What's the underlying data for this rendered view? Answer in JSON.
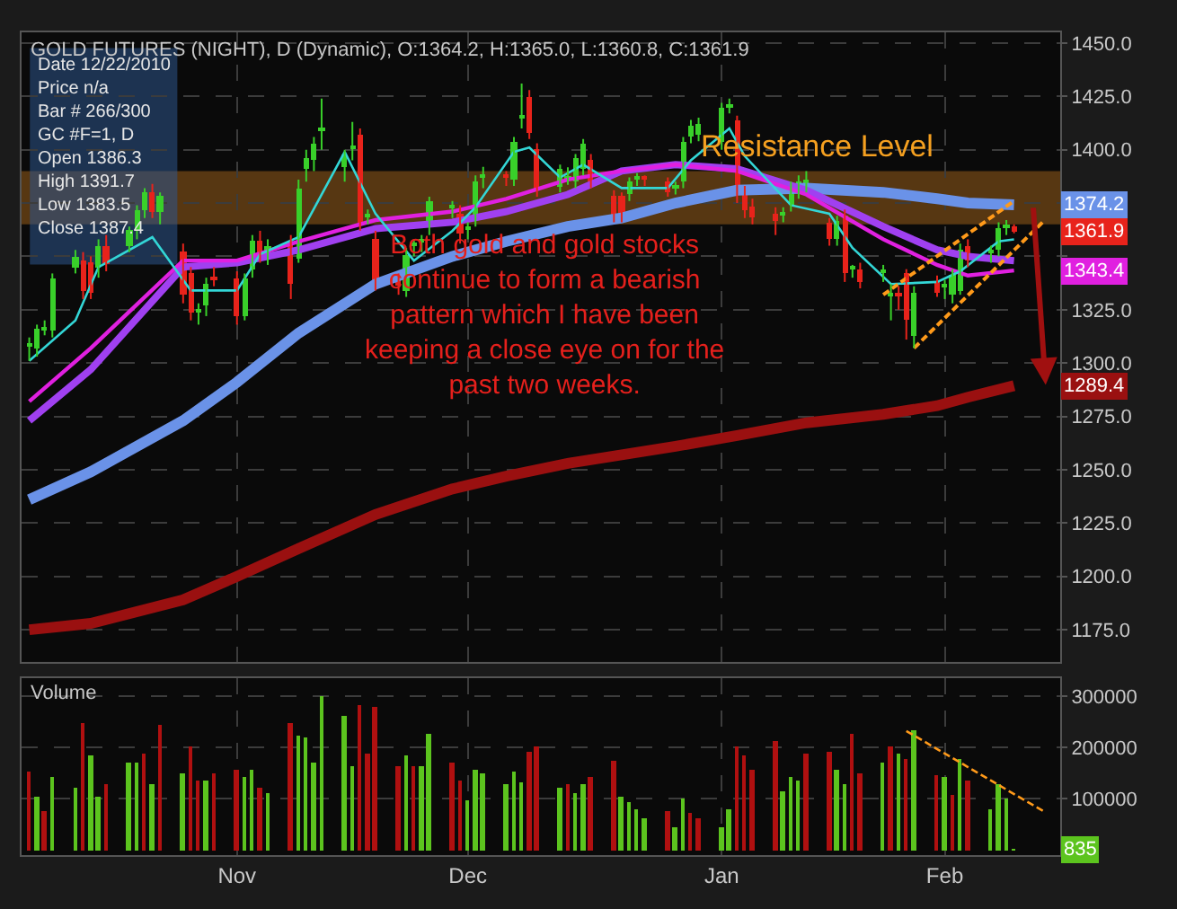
{
  "chart_data": [
    {
      "type": "candlestick",
      "title": "GOLD FUTURES (NIGHT), D (Dynamic), O:1364.2, H:1365.0, L:1360.8, C:1361.9",
      "x": [
        "2010-10-05",
        "2010-10-06",
        "2010-10-07",
        "2010-10-08",
        "2010-10-11",
        "2010-10-12",
        "2010-10-13",
        "2010-10-14",
        "2010-10-15",
        "2010-10-18",
        "2010-10-19",
        "2010-10-20",
        "2010-10-21",
        "2010-10-22",
        "2010-10-25",
        "2010-10-26",
        "2010-10-27",
        "2010-10-28",
        "2010-10-29",
        "2010-11-01",
        "2010-11-02",
        "2010-11-03",
        "2010-11-04",
        "2010-11-05",
        "2010-11-08",
        "2010-11-09",
        "2010-11-10",
        "2010-11-11",
        "2010-11-12",
        "2010-11-15",
        "2010-11-16",
        "2010-11-17",
        "2010-11-18",
        "2010-11-19",
        "2010-11-22",
        "2010-11-23",
        "2010-11-24",
        "2010-11-25",
        "2010-11-26",
        "2010-11-29",
        "2010-11-30",
        "2010-12-01",
        "2010-12-02",
        "2010-12-03",
        "2010-12-06",
        "2010-12-07",
        "2010-12-08",
        "2010-12-09",
        "2010-12-10",
        "2010-12-13",
        "2010-12-14",
        "2010-12-15",
        "2010-12-16",
        "2010-12-17",
        "2010-12-20",
        "2010-12-21",
        "2010-12-22",
        "2010-12-23",
        "2010-12-24",
        "2010-12-27",
        "2010-12-28",
        "2010-12-29",
        "2010-12-30",
        "2010-12-31",
        "2011-01-03",
        "2011-01-04",
        "2011-01-05",
        "2011-01-06",
        "2011-01-07",
        "2011-01-10",
        "2011-01-11",
        "2011-01-12",
        "2011-01-13",
        "2011-01-14",
        "2011-01-17",
        "2011-01-18",
        "2011-01-19",
        "2011-01-20",
        "2011-01-21",
        "2011-01-24",
        "2011-01-25",
        "2011-01-26",
        "2011-01-27",
        "2011-01-28",
        "2011-01-31",
        "2011-02-01",
        "2011-02-02",
        "2011-02-03",
        "2011-02-04",
        "2011-02-07",
        "2011-02-08",
        "2011-02-09",
        "2011-02-10"
      ],
      "ohlc": [
        [
          1308,
          1312,
          1301,
          1309
        ],
        [
          1307,
          1318,
          1303,
          1316
        ],
        [
          1316,
          1320,
          1313,
          1317
        ],
        [
          1315,
          1342,
          1312,
          1340
        ],
        [
          1345,
          1353,
          1342,
          1350
        ],
        [
          1348,
          1352,
          1330,
          1334
        ],
        [
          1347,
          1350,
          1330,
          1333
        ],
        [
          1345,
          1358,
          1340,
          1355
        ],
        [
          1355,
          1360,
          1343,
          1346
        ],
        [
          1355,
          1364,
          1352,
          1362
        ],
        [
          1362,
          1374,
          1358,
          1372
        ],
        [
          1372,
          1382,
          1368,
          1380
        ],
        [
          1380,
          1384,
          1368,
          1371
        ],
        [
          1371,
          1380,
          1365,
          1378
        ],
        [
          1352,
          1356,
          1328,
          1332
        ],
        [
          1342,
          1345,
          1320,
          1324
        ],
        [
          1324,
          1328,
          1318,
          1325
        ],
        [
          1327,
          1340,
          1322,
          1337
        ],
        [
          1340,
          1345,
          1336,
          1339
        ],
        [
          1340,
          1343,
          1318,
          1322
        ],
        [
          1322,
          1342,
          1320,
          1340
        ],
        [
          1344,
          1360,
          1340,
          1357
        ],
        [
          1357,
          1362,
          1347,
          1350
        ],
        [
          1350,
          1358,
          1346,
          1355
        ],
        [
          1357,
          1360,
          1330,
          1337
        ],
        [
          1349,
          1386,
          1347,
          1382
        ],
        [
          1391,
          1400,
          1385,
          1396
        ],
        [
          1395,
          1406,
          1390,
          1403
        ],
        [
          1409,
          1424,
          1400,
          1410
        ],
        [
          1392,
          1400,
          1385,
          1398
        ],
        [
          1401,
          1413,
          1395,
          1402
        ],
        [
          1407,
          1410,
          1362,
          1365
        ],
        [
          1369,
          1372,
          1365,
          1370
        ],
        [
          1358,
          1362,
          1334,
          1337
        ],
        [
          1339,
          1342,
          1332,
          1336
        ],
        [
          1334,
          1354,
          1331,
          1351
        ],
        [
          1355,
          1358,
          1350,
          1356
        ],
        [
          1357,
          1360,
          1352,
          1358
        ],
        [
          1365,
          1378,
          1360,
          1376
        ],
        [
          1373,
          1376,
          1368,
          1374
        ],
        [
          1370,
          1374,
          1356,
          1361
        ],
        [
          1363,
          1366,
          1358,
          1364
        ],
        [
          1368,
          1388,
          1364,
          1385
        ],
        [
          1387,
          1392,
          1382,
          1388
        ],
        [
          1388,
          1390,
          1383,
          1387
        ],
        [
          1386,
          1406,
          1383,
          1404
        ],
        [
          1415,
          1431,
          1410,
          1416
        ],
        [
          1425,
          1428,
          1405,
          1408
        ],
        [
          1400,
          1403,
          1378,
          1382
        ],
        [
          1383,
          1393,
          1380,
          1391
        ],
        [
          1386.3,
          1391.7,
          1383.5,
          1387.4
        ],
        [
          1385,
          1398,
          1382,
          1396
        ],
        [
          1391,
          1405,
          1388,
          1403
        ],
        [
          1395,
          1398,
          1382,
          1385
        ],
        [
          1378,
          1381,
          1366,
          1369
        ],
        [
          1378,
          1380,
          1366,
          1369
        ],
        [
          1379,
          1387,
          1376,
          1385
        ],
        [
          1386,
          1389,
          1383,
          1387
        ],
        [
          1387,
          1388,
          1383,
          1386
        ],
        [
          1385,
          1387,
          1378,
          1380
        ],
        [
          1382,
          1385,
          1379,
          1383
        ],
        [
          1385,
          1406,
          1382,
          1404
        ],
        [
          1406,
          1414,
          1403,
          1411
        ],
        [
          1407,
          1415,
          1404,
          1412
        ],
        [
          1404,
          1422,
          1400,
          1420
        ],
        [
          1420,
          1424,
          1417,
          1421
        ],
        [
          1414,
          1416,
          1375,
          1379
        ],
        [
          1379,
          1383,
          1368,
          1372
        ],
        [
          1373,
          1377,
          1365,
          1368
        ],
        [
          1370,
          1373,
          1360,
          1367
        ],
        [
          1369,
          1373,
          1366,
          1371
        ],
        [
          1374,
          1385,
          1371,
          1383
        ],
        [
          1380,
          1388,
          1377,
          1385
        ],
        [
          1385,
          1390,
          1380,
          1386
        ],
        [
          1366,
          1368,
          1355,
          1358
        ],
        [
          1358,
          1369,
          1355,
          1367
        ],
        [
          1369,
          1372,
          1338,
          1342
        ],
        [
          1344,
          1346,
          1340,
          1345
        ],
        [
          1344,
          1347,
          1335,
          1338
        ],
        [
          1343,
          1346,
          1338,
          1344
        ],
        [
          1332,
          1337,
          1320,
          1333
        ],
        [
          1333,
          1336,
          1325,
          1332
        ],
        [
          1342,
          1344,
          1311,
          1320
        ],
        [
          1313,
          1336,
          1307,
          1333
        ],
        [
          1338,
          1341,
          1331,
          1333
        ],
        [
          1336,
          1339,
          1330,
          1337
        ],
        [
          1332,
          1344,
          1328,
          1341
        ],
        [
          1334,
          1356,
          1332,
          1353
        ],
        [
          1355,
          1358,
          1345,
          1348
        ],
        [
          1352,
          1355,
          1347,
          1353
        ],
        [
          1353,
          1366,
          1350,
          1363
        ],
        [
          1364,
          1367,
          1360,
          1365
        ],
        [
          1364.2,
          1365.0,
          1360.8,
          1361.9
        ]
      ],
      "colors": [
        "#39d02a",
        "#39d02a",
        "#39d02a",
        "#39d02a",
        "#39d02a",
        "#e8231b",
        "#e8231b",
        "#39d02a",
        "#e8231b",
        "#39d02a",
        "#39d02a",
        "#39d02a",
        "#e8231b",
        "#39d02a",
        "#e8231b",
        "#e8231b",
        "#39d02a",
        "#39d02a",
        "#e8231b",
        "#e8231b",
        "#39d02a",
        "#39d02a",
        "#e8231b",
        "#39d02a",
        "#e8231b",
        "#39d02a",
        "#39d02a",
        "#39d02a",
        "#39d02a",
        "#39d02a",
        "#39d02a",
        "#e8231b",
        "#39d02a",
        "#e8231b",
        "#e8231b",
        "#39d02a",
        "#39d02a",
        "#39d02a",
        "#39d02a",
        "#39d02a",
        "#e8231b",
        "#39d02a",
        "#39d02a",
        "#39d02a",
        "#e8231b",
        "#39d02a",
        "#39d02a",
        "#e8231b",
        "#e8231b",
        "#39d02a",
        "#39d02a",
        "#39d02a",
        "#39d02a",
        "#e8231b",
        "#e8231b",
        "#e8231b",
        "#39d02a",
        "#39d02a",
        "#e8231b",
        "#e8231b",
        "#39d02a",
        "#39d02a",
        "#39d02a",
        "#39d02a",
        "#39d02a",
        "#39d02a",
        "#e8231b",
        "#e8231b",
        "#e8231b",
        "#e8231b",
        "#39d02a",
        "#39d02a",
        "#39d02a",
        "#39d02a",
        "#e8231b",
        "#39d02a",
        "#e8231b",
        "#39d02a",
        "#e8231b",
        "#39d02a",
        "#39d02a",
        "#e8231b",
        "#e8231b",
        "#39d02a",
        "#e8231b",
        "#39d02a",
        "#39d02a",
        "#39d02a",
        "#e8231b",
        "#39d02a",
        "#39d02a",
        "#39d02a",
        "#e8231b"
      ],
      "series": [
        {
          "type": "line",
          "color": "#33d6d6",
          "x": [
            "2010-10-05",
            "2010-10-11",
            "2010-10-14",
            "2010-10-21",
            "2010-10-26",
            "2010-11-01",
            "2010-11-04",
            "2010-11-09",
            "2010-11-15",
            "2010-11-19",
            "2010-11-24",
            "2010-11-29",
            "2010-12-02",
            "2010-12-07",
            "2010-12-09",
            "2010-12-13",
            "2010-12-16",
            "2010-12-21",
            "2010-12-27",
            "2010-12-30",
            "2011-01-04",
            "2011-01-06",
            "2011-01-12",
            "2011-01-17",
            "2011-01-20",
            "2011-01-25",
            "2011-01-31",
            "2011-02-03",
            "2011-02-08",
            "2011-02-10"
          ],
          "values": [
            1301,
            1320,
            1345,
            1359,
            1334,
            1334,
            1351,
            1359,
            1399,
            1370,
            1348,
            1362,
            1373,
            1399,
            1401,
            1387,
            1393,
            1382,
            1382,
            1395,
            1410,
            1397,
            1374,
            1370,
            1354,
            1337,
            1338,
            1343,
            1357,
            1358
          ]
        },
        {
          "type": "line",
          "color": "#e020e0",
          "x": [
            "2010-10-05",
            "2010-10-13",
            "2010-10-25",
            "2010-11-01",
            "2010-11-09",
            "2010-11-19",
            "2010-11-29",
            "2010-12-06",
            "2010-12-14",
            "2010-12-21",
            "2010-12-28",
            "2011-01-05",
            "2011-01-14",
            "2011-01-24",
            "2011-01-31",
            "2011-02-04",
            "2011-02-10"
          ],
          "values": [
            1282,
            1307,
            1348,
            1348,
            1357,
            1367,
            1371,
            1377,
            1386,
            1390,
            1393,
            1390,
            1379,
            1358,
            1346,
            1341,
            1343.4
          ]
        },
        {
          "type": "line",
          "color": "#a040f0",
          "x": [
            "2010-10-05",
            "2010-10-13",
            "2010-10-25",
            "2010-11-01",
            "2010-11-09",
            "2010-11-19",
            "2010-11-29",
            "2010-12-06",
            "2010-12-14",
            "2010-12-21",
            "2010-12-28",
            "2011-01-05",
            "2011-01-14",
            "2011-01-24",
            "2011-01-31",
            "2011-02-04",
            "2011-02-10"
          ],
          "values": [
            1273,
            1297,
            1345,
            1347,
            1353,
            1363,
            1366,
            1371,
            1379,
            1390,
            1393,
            1391,
            1381,
            1364,
            1353,
            1350,
            1348
          ]
        },
        {
          "type": "line",
          "color": "#6a92e8",
          "x": [
            "2010-10-05",
            "2010-10-13",
            "2010-10-25",
            "2010-11-01",
            "2010-11-09",
            "2010-11-19",
            "2010-11-29",
            "2010-12-06",
            "2010-12-14",
            "2010-12-21",
            "2010-12-28",
            "2011-01-05",
            "2011-01-14",
            "2011-01-24",
            "2011-01-31",
            "2011-02-04",
            "2011-02-10"
          ],
          "values": [
            1236,
            1249,
            1273,
            1291,
            1314,
            1337,
            1350,
            1357,
            1364,
            1368,
            1375,
            1381,
            1382,
            1380,
            1377,
            1375,
            1374.2
          ]
        },
        {
          "type": "line",
          "color": "#9a1010",
          "x": [
            "2010-10-05",
            "2010-10-13",
            "2010-10-25",
            "2010-11-01",
            "2010-11-09",
            "2010-11-19",
            "2010-11-29",
            "2010-12-06",
            "2010-12-14",
            "2010-12-21",
            "2010-12-28",
            "2011-01-05",
            "2011-01-14",
            "2011-01-24",
            "2011-01-31",
            "2011-02-04",
            "2011-02-10"
          ],
          "values": [
            1175,
            1178,
            1189,
            1200,
            1213,
            1229,
            1241,
            1247,
            1253,
            1257,
            1261,
            1266,
            1272,
            1276,
            1280,
            1284,
            1289.4
          ]
        },
        {
          "type": "line",
          "color": "#ff9a1a",
          "line_style": "dashed",
          "x": [
            "2011-01-24",
            "2011-02-10"
          ],
          "values": [
            1332,
            1376
          ]
        },
        {
          "type": "line",
          "color": "#ff9a1a",
          "line_style": "dashed",
          "x": [
            "2011-01-28",
            "2011-02-14"
          ],
          "values": [
            1307,
            1367
          ]
        }
      ],
      "bands": [
        {
          "axis": "y",
          "from": 1365,
          "to": 1390,
          "label": "Resistance Level",
          "color": "#8a5518"
        }
      ],
      "annotations": [
        "Both gold and gold stocks\ncontinue to form a bearish\npattern which I have been\nkeeping a close eye on for the\npast two weeks.",
        "Date 12/22/2010\nPrice n/a\nBar # 266/300\nGC #F=1, D\nOpen 1386.3\nHigh 1391.7\nLow 1383.5\nClose 1387.4",
        {
          "text": "1374.2",
          "x": "2011-02-10",
          "y": 1374.2
        },
        {
          "text": "1361.9",
          "x": "2011-02-10",
          "y": 1361.9
        },
        {
          "text": "1343.4",
          "x": "2011-02-10",
          "y": 1343.4
        },
        {
          "text": "1289.4",
          "x": "2011-02-10",
          "y": 1289.4
        }
      ],
      "xlim": [
        "2010-10-04",
        "2011-02-16"
      ],
      "xticks": [
        {
          "value": "2010-11-01",
          "label": null
        },
        {
          "value": "2010-12-01",
          "label": null
        },
        {
          "value": "2011-01-03",
          "label": null
        },
        {
          "value": "2011-02-01",
          "label": null
        }
      ],
      "ylim": [
        1160,
        1455
      ],
      "yticks": [
        {
          "value": 1175,
          "label": "1175.0"
        },
        {
          "value": 1200,
          "label": "1200.0"
        },
        {
          "value": 1225,
          "label": "1225.0"
        },
        {
          "value": 1250,
          "label": "1250.0"
        },
        {
          "value": 1275,
          "label": "1275.0"
        },
        {
          "value": 1300,
          "label": "1300.0"
        },
        {
          "value": 1325,
          "label": "1325.0"
        },
        {
          "value": 1350,
          "label": null
        },
        {
          "value": 1375,
          "label": null
        },
        {
          "value": 1400,
          "label": "1400.0"
        },
        {
          "value": 1425,
          "label": "1425.0"
        },
        {
          "value": 1450,
          "label": "1450.0"
        }
      ],
      "grid": true,
      "tick_labels": "y"
    },
    {
      "type": "bar",
      "title": "Volume",
      "x": [
        "2010-10-05",
        "2010-10-06",
        "2010-10-07",
        "2010-10-08",
        "2010-10-11",
        "2010-10-12",
        "2010-10-13",
        "2010-10-14",
        "2010-10-15",
        "2010-10-18",
        "2010-10-19",
        "2010-10-20",
        "2010-10-21",
        "2010-10-22",
        "2010-10-25",
        "2010-10-26",
        "2010-10-27",
        "2010-10-28",
        "2010-10-29",
        "2010-11-01",
        "2010-11-02",
        "2010-11-03",
        "2010-11-04",
        "2010-11-05",
        "2010-11-08",
        "2010-11-09",
        "2010-11-10",
        "2010-11-11",
        "2010-11-12",
        "2010-11-15",
        "2010-11-16",
        "2010-11-17",
        "2010-11-18",
        "2010-11-19",
        "2010-11-22",
        "2010-11-23",
        "2010-11-24",
        "2010-11-25",
        "2010-11-26",
        "2010-11-29",
        "2010-11-30",
        "2010-12-01",
        "2010-12-02",
        "2010-12-03",
        "2010-12-06",
        "2010-12-07",
        "2010-12-08",
        "2010-12-09",
        "2010-12-10",
        "2010-12-13",
        "2010-12-14",
        "2010-12-15",
        "2010-12-16",
        "2010-12-17",
        "2010-12-20",
        "2010-12-21",
        "2010-12-22",
        "2010-12-23",
        "2010-12-24",
        "2010-12-27",
        "2010-12-28",
        "2010-12-29",
        "2010-12-30",
        "2010-12-31",
        "2011-01-03",
        "2011-01-04",
        "2011-01-05",
        "2011-01-06",
        "2011-01-07",
        "2011-01-10",
        "2011-01-11",
        "2011-01-12",
        "2011-01-13",
        "2011-01-14",
        "2011-01-17",
        "2011-01-18",
        "2011-01-19",
        "2011-01-20",
        "2011-01-21",
        "2011-01-24",
        "2011-01-25",
        "2011-01-26",
        "2011-01-27",
        "2011-01-28",
        "2011-01-31",
        "2011-02-01",
        "2011-02-02",
        "2011-02-03",
        "2011-02-04",
        "2011-02-07",
        "2011-02-08",
        "2011-02-09",
        "2011-02-10"
      ],
      "values": [
        154000,
        103000,
        74000,
        144000,
        122000,
        247000,
        184000,
        103000,
        128000,
        169000,
        169000,
        187000,
        128000,
        243000,
        150000,
        201000,
        135000,
        137000,
        150000,
        157000,
        143000,
        157000,
        122000,
        110000,
        246000,
        224000,
        221000,
        169000,
        299000,
        263000,
        165000,
        284000,
        187000,
        279000,
        162000,
        184000,
        162000,
        162000,
        225000,
        172000,
        135000,
        96000,
        157000,
        151000,
        129000,
        154000,
        132000,
        191000,
        203000,
        122000,
        128000,
        110000,
        128000,
        143000,
        174000,
        103000,
        93000,
        81000,
        63000,
        74000,
        44000,
        100000,
        71000,
        63000,
        44000,
        78000,
        203000,
        184000,
        157000,
        213000,
        113000,
        144000,
        137000,
        187000,
        191000,
        157000,
        128000,
        228000,
        150000,
        169000,
        201000,
        187000,
        179000,
        232000,
        147000,
        143000,
        106000,
        179000,
        137000,
        81000,
        128000,
        100000,
        835
      ],
      "colors": [
        "#b01010",
        "#5cc41e",
        "#b01010",
        "#5cc41e",
        "#5cc41e",
        "#b01010",
        "#5cc41e",
        "#5cc41e",
        "#b01010",
        "#5cc41e",
        "#5cc41e",
        "#b01010",
        "#5cc41e",
        "#b01010",
        "#5cc41e",
        "#b01010",
        "#b01010",
        "#5cc41e",
        "#b01010",
        "#b01010",
        "#5cc41e",
        "#5cc41e",
        "#b01010",
        "#5cc41e",
        "#b01010",
        "#5cc41e",
        "#5cc41e",
        "#5cc41e",
        "#5cc41e",
        "#5cc41e",
        "#5cc41e",
        "#b01010",
        "#b01010",
        "#b01010",
        "#b01010",
        "#5cc41e",
        "#b01010",
        "#5cc41e",
        "#5cc41e",
        "#b01010",
        "#b01010",
        "#5cc41e",
        "#5cc41e",
        "#5cc41e",
        "#5cc41e",
        "#5cc41e",
        "#5cc41e",
        "#b01010",
        "#b01010",
        "#5cc41e",
        "#b01010",
        "#5cc41e",
        "#5cc41e",
        "#b01010",
        "#b01010",
        "#5cc41e",
        "#5cc41e",
        "#5cc41e",
        "#5cc41e",
        "#b01010",
        "#5cc41e",
        "#5cc41e",
        "#b01010",
        "#b01010",
        "#5cc41e",
        "#5cc41e",
        "#b01010",
        "#b01010",
        "#b01010",
        "#b01010",
        "#5cc41e",
        "#5cc41e",
        "#5cc41e",
        "#b01010",
        "#b01010",
        "#5cc41e",
        "#5cc41e",
        "#b01010",
        "#b01010",
        "#5cc41e",
        "#b01010",
        "#5cc41e",
        "#b01010",
        "#5cc41e",
        "#b01010",
        "#5cc41e",
        "#b01010",
        "#5cc41e",
        "#b01010",
        "#5cc41e",
        "#5cc41e",
        "#5cc41e",
        "#5cc41e"
      ],
      "series": [
        {
          "type": "line",
          "color": "#ff9a1a",
          "line_style": "dashed",
          "x": [
            "2011-01-27",
            "2011-02-14"
          ],
          "values": [
            232000,
            74000
          ]
        }
      ],
      "annotations": [
        {
          "text": "835",
          "x": "2011-02-10",
          "y": 835
        }
      ],
      "xlim": [
        "2010-10-04",
        "2011-02-16"
      ],
      "xticks": [
        {
          "value": "2010-11-01",
          "label": "Nov"
        },
        {
          "value": "2010-12-01",
          "label": "Dec"
        },
        {
          "value": "2011-01-03",
          "label": "Jan"
        },
        {
          "value": "2011-02-01",
          "label": "Feb"
        }
      ],
      "ylim": [
        -10000,
        335000
      ],
      "yticks": [
        100000,
        200000,
        300000
      ],
      "grid": true
    }
  ]
}
